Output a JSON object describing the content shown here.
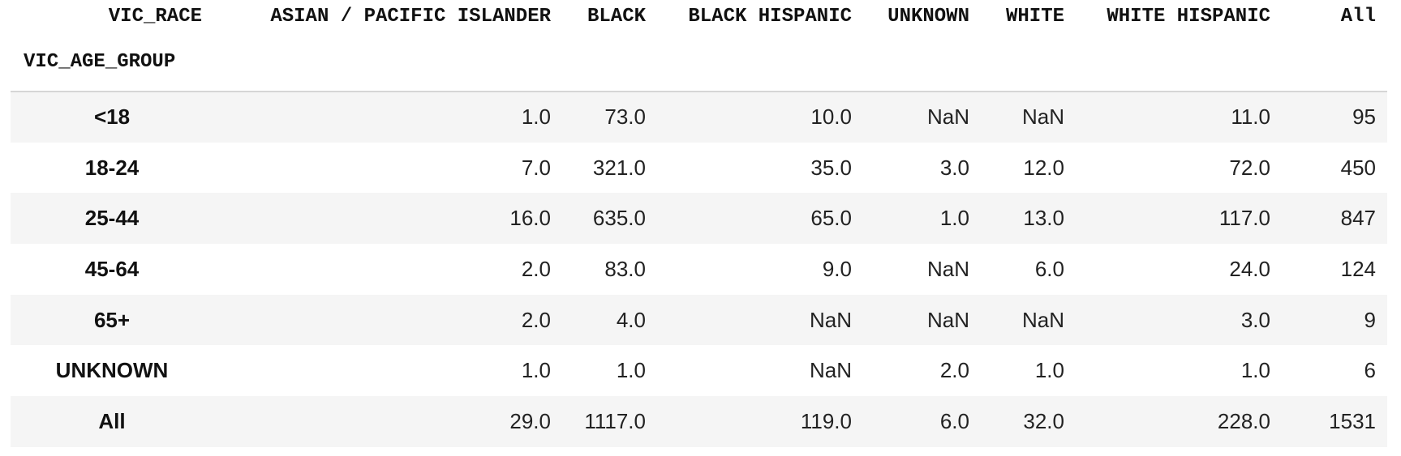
{
  "table": {
    "columns_name": "VIC_RACE",
    "index_name": "VIC_AGE_GROUP",
    "columns": [
      "ASIAN / PACIFIC ISLANDER",
      "BLACK",
      "BLACK HISPANIC",
      "UNKNOWN",
      "WHITE",
      "WHITE HISPANIC",
      "All"
    ],
    "rows": [
      {
        "label": "<18",
        "cells": [
          "1.0",
          "73.0",
          "10.0",
          "NaN",
          "NaN",
          "11.0",
          "95"
        ]
      },
      {
        "label": "18-24",
        "cells": [
          "7.0",
          "321.0",
          "35.0",
          "3.0",
          "12.0",
          "72.0",
          "450"
        ]
      },
      {
        "label": "25-44",
        "cells": [
          "16.0",
          "635.0",
          "65.0",
          "1.0",
          "13.0",
          "117.0",
          "847"
        ]
      },
      {
        "label": "45-64",
        "cells": [
          "2.0",
          "83.0",
          "9.0",
          "NaN",
          "6.0",
          "24.0",
          "124"
        ]
      },
      {
        "label": "65+",
        "cells": [
          "2.0",
          "4.0",
          "NaN",
          "NaN",
          "NaN",
          "3.0",
          "9"
        ]
      },
      {
        "label": "UNKNOWN",
        "cells": [
          "1.0",
          "1.0",
          "NaN",
          "2.0",
          "1.0",
          "1.0",
          "6"
        ]
      },
      {
        "label": "All",
        "cells": [
          "29.0",
          "1117.0",
          "119.0",
          "6.0",
          "32.0",
          "228.0",
          "1531"
        ]
      }
    ]
  }
}
